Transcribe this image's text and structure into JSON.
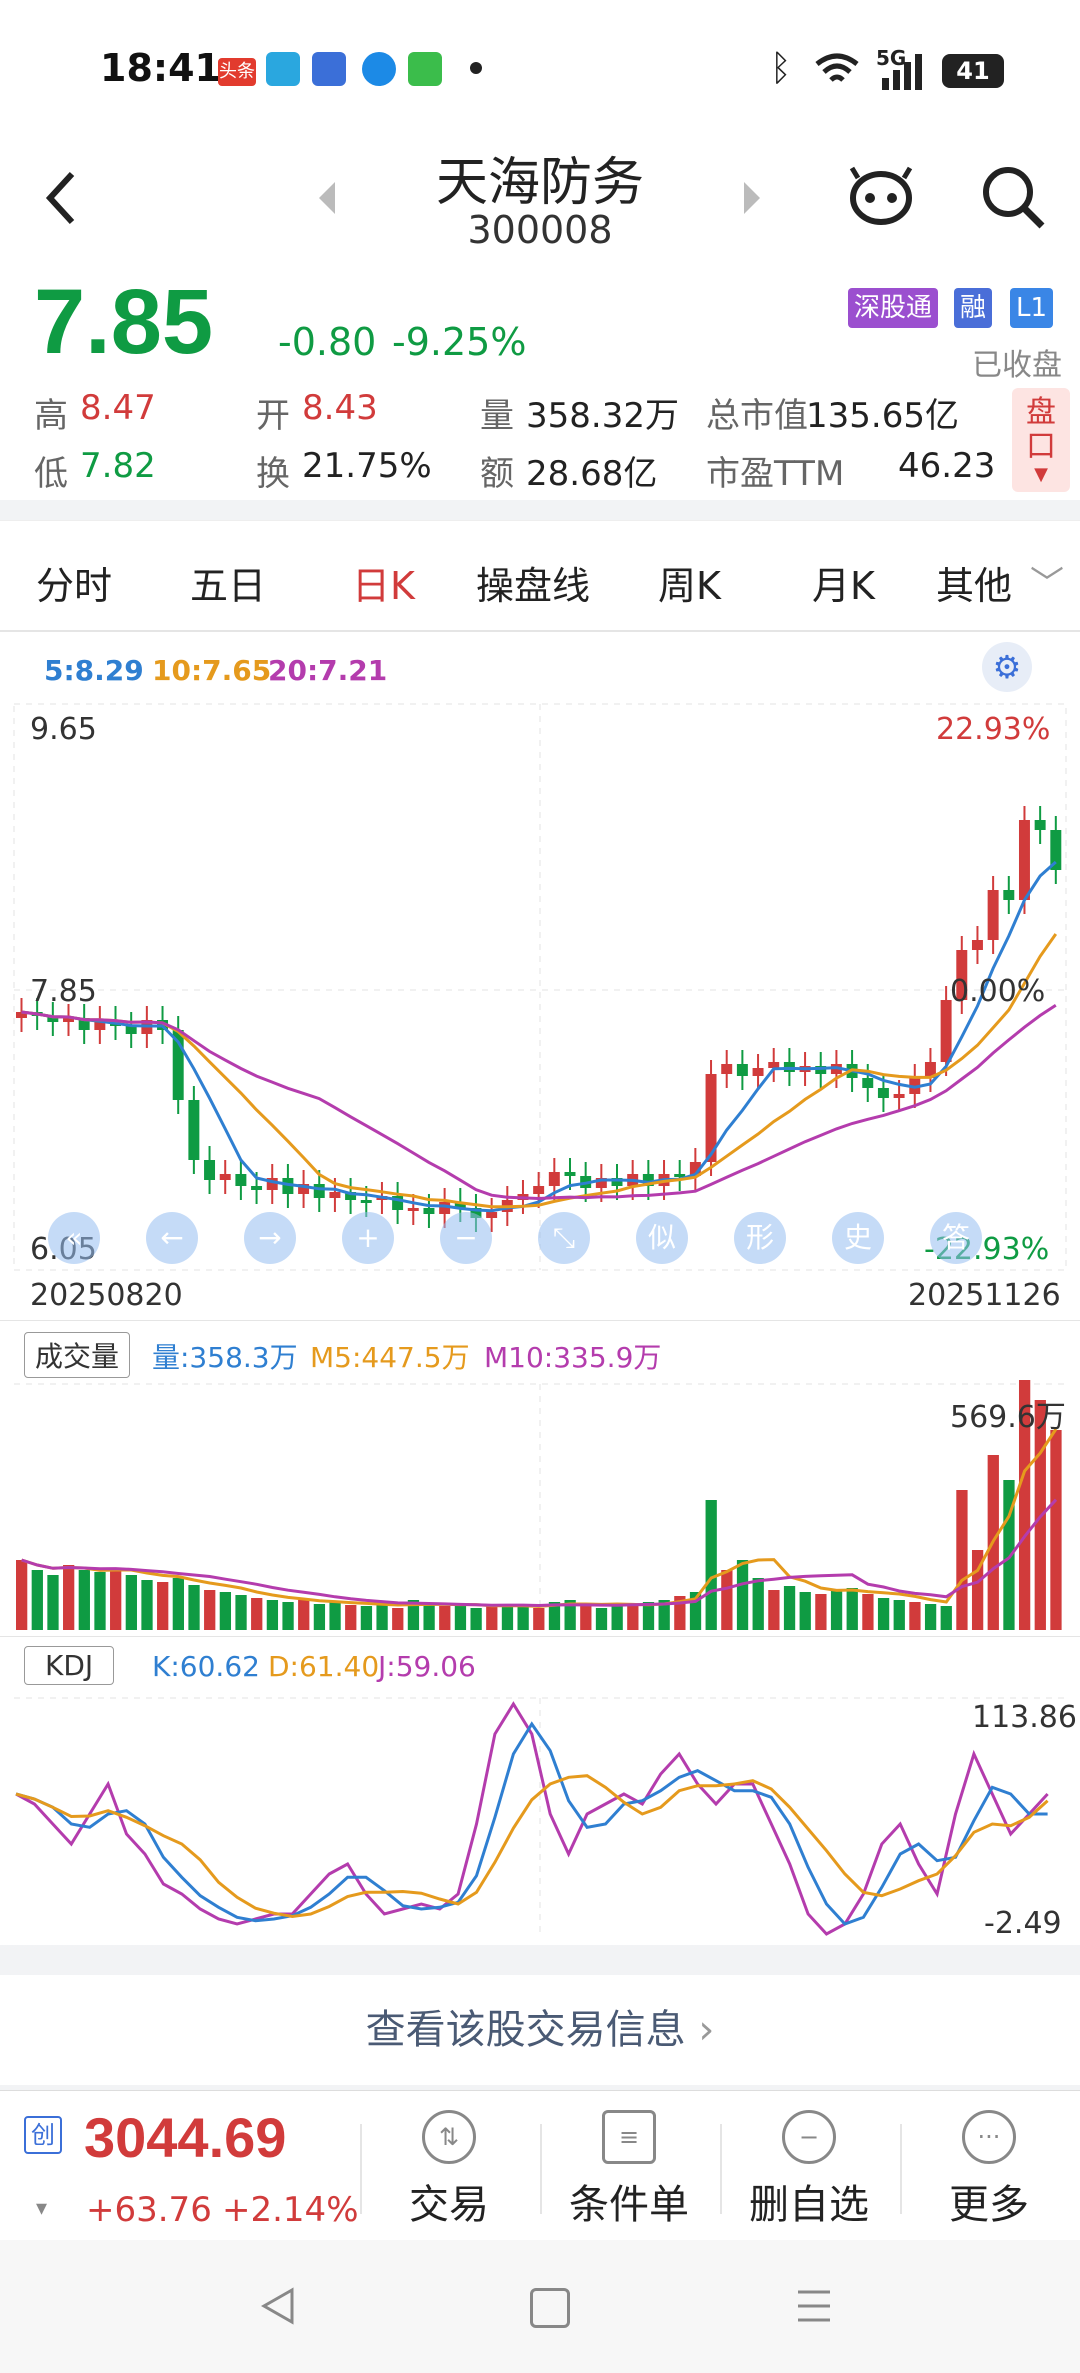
{
  "status": {
    "time": "18:41",
    "net": "5G",
    "battery": "41",
    "app_badge": "头条"
  },
  "header": {
    "name": "天海防务",
    "code": "300008"
  },
  "quote": {
    "price": "7.85",
    "change": "-0.80",
    "change_pct": "-9.25%",
    "badges": [
      "深股通",
      "融",
      "L1"
    ],
    "closed_label": "已收盘",
    "pan_label": "盘口",
    "stats": [
      {
        "label": "高",
        "value": "8.47",
        "tone": "red"
      },
      {
        "label": "开",
        "value": "8.43",
        "tone": "red"
      },
      {
        "label": "量",
        "value": "358.32万",
        "tone": "dark"
      },
      {
        "label": "总市值",
        "value": "135.65亿",
        "tone": "dark"
      },
      {
        "label": "低",
        "value": "7.82",
        "tone": "green"
      },
      {
        "label": "换",
        "value": "21.75%",
        "tone": "dark"
      },
      {
        "label": "额",
        "value": "28.68亿",
        "tone": "dark"
      },
      {
        "label": "市盈TTM",
        "value": "46.23",
        "tone": "dark"
      }
    ]
  },
  "tabs": [
    "分时",
    "五日",
    "日K",
    "操盘线",
    "周K",
    "月K",
    "其他"
  ],
  "active_tab": "日K",
  "kline": {
    "ma_legend": [
      {
        "text": "5:8.29",
        "color": "#2f7fd1"
      },
      {
        "text": "10:7.65",
        "color": "#e59a1d"
      },
      {
        "text": "20:7.21",
        "color": "#b43cad"
      }
    ],
    "y_max": "9.65",
    "y_mid": "7.85",
    "y_min": "6.05",
    "pct_max": "22.93%",
    "pct_mid": "0.00%",
    "pct_min": "-22.93%",
    "date_start": "20250820",
    "date_end": "20251126",
    "tool_icons": [
      "«",
      "←",
      "→",
      "+",
      "−",
      "⤡",
      "似",
      "形",
      "史",
      "答"
    ]
  },
  "volume": {
    "title": "成交量",
    "vol": "量:358.3万",
    "m5": "M5:447.5万",
    "m10": "M10:335.9万",
    "max_label": "569.6万"
  },
  "kdj": {
    "title": "KDJ",
    "k": "K:60.62",
    "d": "D:61.40",
    "j": "J:59.06",
    "max_label": "113.86",
    "min_label": "-2.49"
  },
  "link_text": "查看该股交易信息",
  "index": {
    "badge": "创",
    "value": "3044.69",
    "change": "+63.76",
    "change_pct": "+2.14%"
  },
  "actions": [
    "交易",
    "条件单",
    "删自选",
    "更多"
  ],
  "colors": {
    "up": "#d13b3b",
    "down": "#0f9b43",
    "ma5": "#2f7fd1",
    "ma10": "#e59a1d",
    "ma20": "#b43cad"
  }
}
